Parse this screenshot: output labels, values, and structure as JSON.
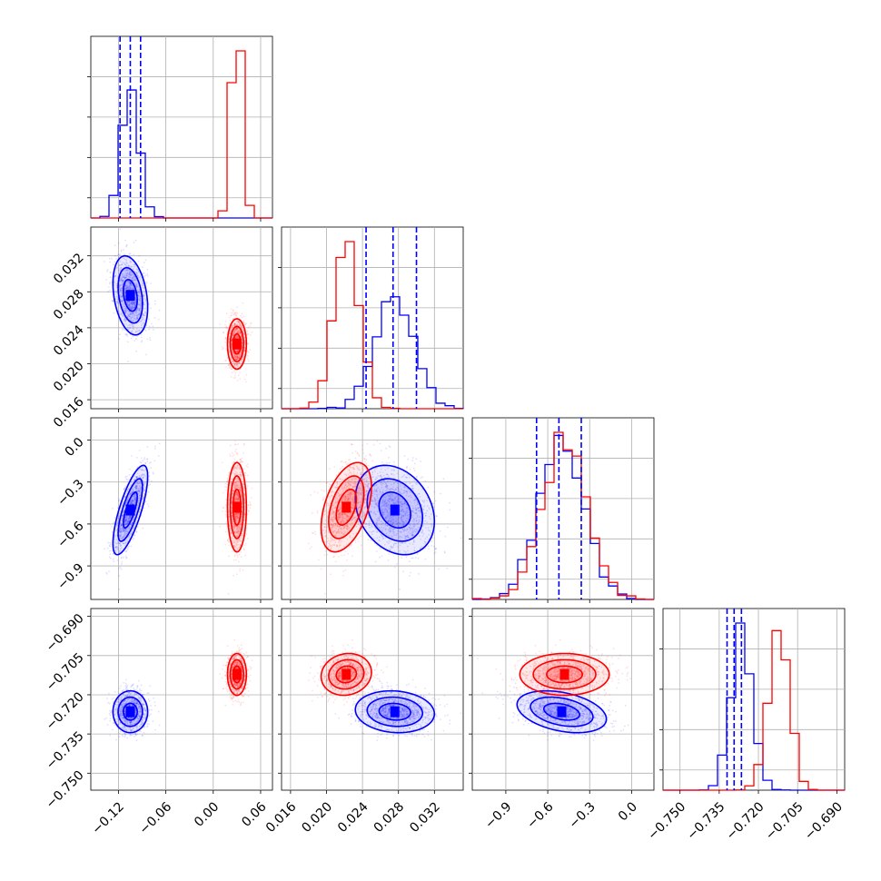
{
  "chart_data": {
    "type": "corner",
    "parameters": [
      {
        "ticks": [
          -0.12,
          -0.06,
          0.0,
          0.06
        ],
        "tick_labels": [
          "−0.12",
          "−0.06",
          "0.00",
          "0.06"
        ],
        "range": [
          -0.155,
          0.075
        ]
      },
      {
        "ticks": [
          0.016,
          0.02,
          0.024,
          0.028,
          0.032
        ],
        "tick_labels": [
          "0.016",
          "0.020",
          "0.024",
          "0.028",
          "0.032"
        ],
        "range": [
          0.015,
          0.0352
        ]
      },
      {
        "ticks": [
          -0.9,
          -0.6,
          -0.3,
          0.0
        ],
        "tick_labels": [
          "−0.9",
          "−0.6",
          "−0.3",
          "0.0"
        ],
        "range": [
          -1.14,
          0.16
        ]
      },
      {
        "ticks": [
          -0.75,
          -0.735,
          -0.72,
          -0.705,
          -0.69
        ],
        "tick_labels": [
          "−0.750",
          "−0.735",
          "−0.720",
          "−0.705",
          "−0.690"
        ],
        "range": [
          -0.7565,
          -0.687
        ]
      }
    ],
    "series": [
      {
        "color": "#0000ff",
        "means": [
          -0.105,
          0.0276,
          -0.5,
          -0.7265
        ],
        "sds": [
          0.011,
          0.0022,
          0.16,
          0.004
        ],
        "correlations": [
          [
            1,
            -0.3,
            0.75,
            0.0
          ],
          [
            -0.3,
            1,
            -0.25,
            -0.1
          ],
          [
            0.75,
            -0.25,
            1,
            -0.35
          ],
          [
            0.0,
            -0.1,
            -0.35,
            1
          ]
        ],
        "quantile_lines": [
          [
            -0.118,
            -0.105,
            -0.092
          ],
          [
            0.0244,
            0.0274,
            0.03
          ],
          [
            -0.68,
            -0.52,
            -0.36
          ],
          [
            -0.732,
            -0.7293,
            -0.7265
          ]
        ]
      },
      {
        "color": "#ff0000",
        "means": [
          0.03,
          0.0222,
          -0.48,
          -0.7122
        ],
        "sds": [
          0.006,
          0.0014,
          0.16,
          0.004
        ],
        "correlations": [
          [
            1,
            0.0,
            0.0,
            0.0
          ],
          [
            0.0,
            1,
            0.45,
            0.1
          ],
          [
            0.0,
            0.45,
            1,
            0.0
          ],
          [
            0.0,
            0.1,
            0.0,
            1
          ]
        ],
        "quantile_lines": []
      }
    ]
  }
}
